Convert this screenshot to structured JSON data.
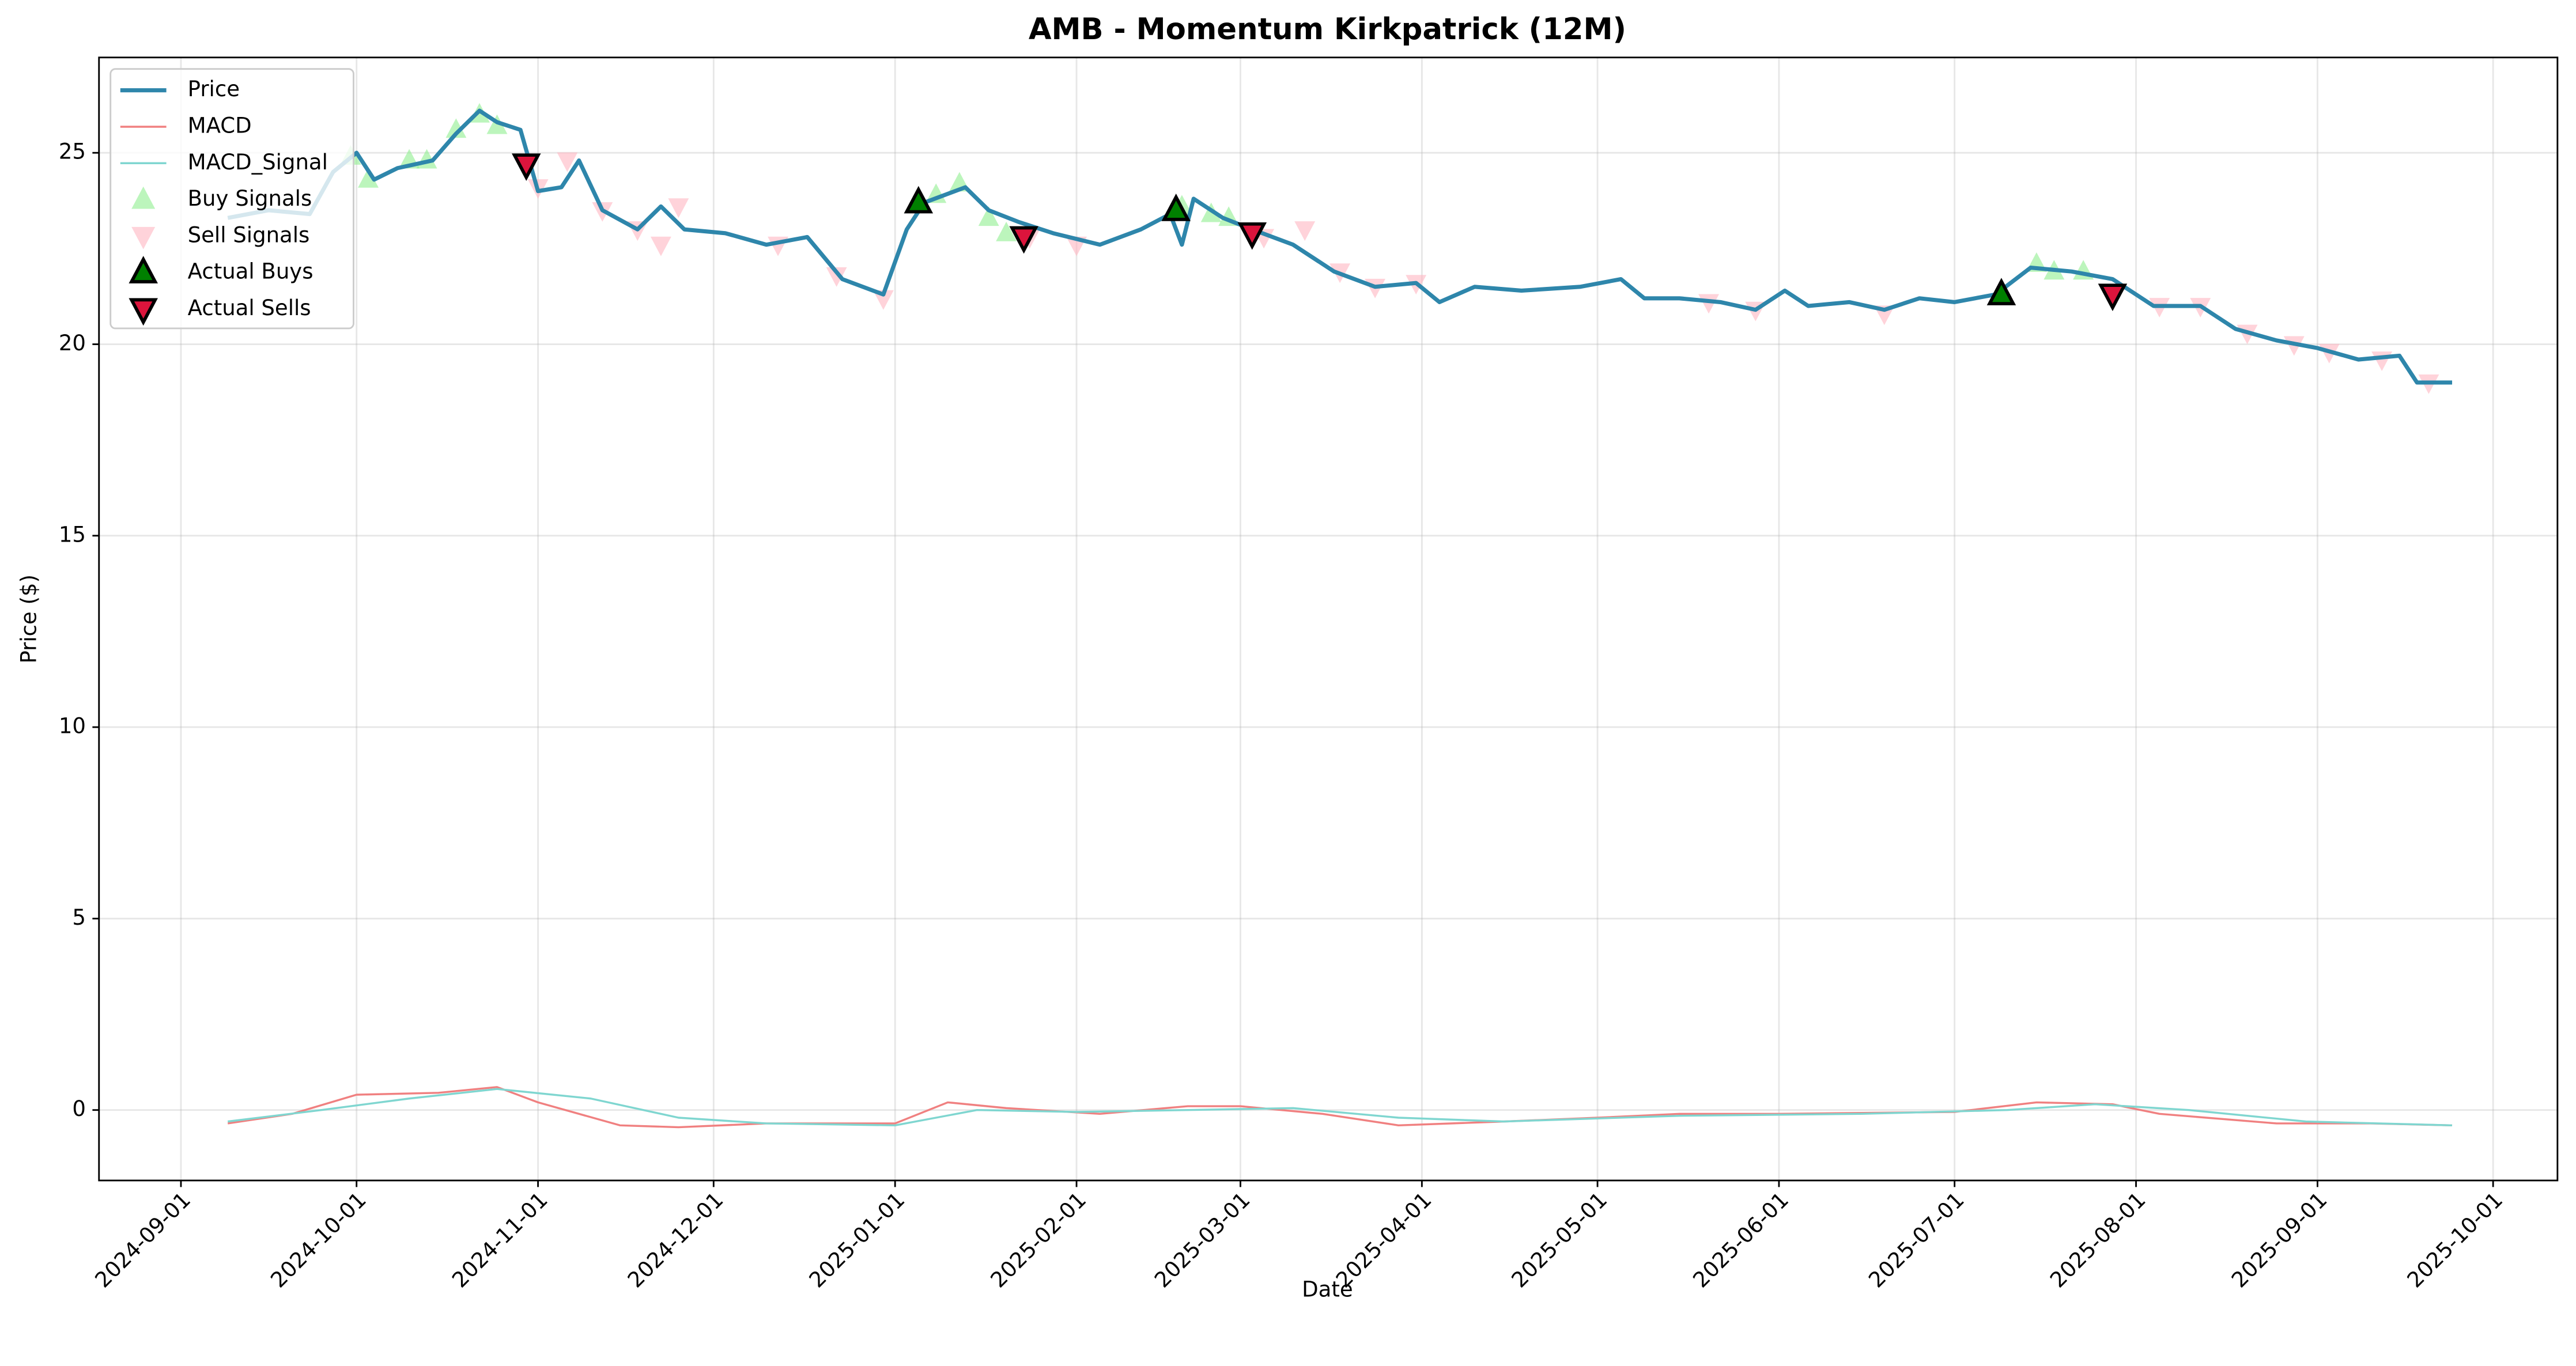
{
  "chart_data": {
    "type": "line",
    "title": "AMB - Momentum Kirkpatrick (12M)",
    "x_label": "Date",
    "y_label": "Price ($)",
    "xlim": [
      "2024-08-18",
      "2025-10-12"
    ],
    "ylim": [
      -1.84,
      27.49
    ],
    "xticks": [
      "2024-09-01",
      "2024-10-01",
      "2024-11-01",
      "2024-12-01",
      "2025-01-01",
      "2025-02-01",
      "2025-03-01",
      "2025-04-01",
      "2025-05-01",
      "2025-06-01",
      "2025-07-01",
      "2025-08-01",
      "2025-09-01",
      "2025-10-01"
    ],
    "yticks": [
      0,
      5,
      10,
      15,
      20,
      25
    ],
    "grid": true,
    "legend": "upper left",
    "series": [
      {
        "name": "Price",
        "kind": "line",
        "color": "#2e86ab",
        "width": 2.5,
        "x": [
          "2024-09-09",
          "2024-09-16",
          "2024-09-23",
          "2024-09-27",
          "2024-10-01",
          "2024-10-04",
          "2024-10-08",
          "2024-10-14",
          "2024-10-18",
          "2024-10-22",
          "2024-10-25",
          "2024-10-29",
          "2024-11-01",
          "2024-11-05",
          "2024-11-08",
          "2024-11-12",
          "2024-11-18",
          "2024-11-22",
          "2024-11-26",
          "2024-12-03",
          "2024-12-10",
          "2024-12-17",
          "2024-12-23",
          "2024-12-30",
          "2025-01-03",
          "2025-01-06",
          "2025-01-13",
          "2025-01-17",
          "2025-01-22",
          "2025-01-28",
          "2025-02-05",
          "2025-02-12",
          "2025-02-17",
          "2025-02-19",
          "2025-02-21",
          "2025-02-26",
          "2025-03-03",
          "2025-03-10",
          "2025-03-17",
          "2025-03-24",
          "2025-03-31",
          "2025-04-04",
          "2025-04-10",
          "2025-04-18",
          "2025-04-28",
          "2025-05-05",
          "2025-05-09",
          "2025-05-15",
          "2025-05-22",
          "2025-05-28",
          "2025-06-02",
          "2025-06-06",
          "2025-06-13",
          "2025-06-19",
          "2025-06-25",
          "2025-07-01",
          "2025-07-08",
          "2025-07-14",
          "2025-07-21",
          "2025-07-28",
          "2025-08-04",
          "2025-08-12",
          "2025-08-18",
          "2025-08-25",
          "2025-09-01",
          "2025-09-08",
          "2025-09-15",
          "2025-09-18",
          "2025-09-24"
        ],
        "values": [
          23.3,
          23.5,
          23.4,
          24.5,
          25.0,
          24.3,
          24.6,
          24.8,
          25.5,
          26.1,
          25.8,
          25.6,
          24.0,
          24.1,
          24.8,
          23.5,
          23.0,
          23.6,
          23.0,
          22.9,
          22.6,
          22.8,
          21.7,
          21.3,
          23.0,
          23.7,
          24.1,
          23.5,
          23.2,
          22.9,
          22.6,
          23.0,
          23.4,
          22.6,
          23.8,
          23.3,
          23.0,
          22.6,
          21.9,
          21.5,
          21.6,
          21.1,
          21.5,
          21.4,
          21.5,
          21.7,
          21.2,
          21.2,
          21.1,
          20.9,
          21.4,
          21.0,
          21.1,
          20.9,
          21.2,
          21.1,
          21.3,
          22.0,
          21.9,
          21.7,
          21.0,
          21.0,
          20.4,
          20.1,
          19.9,
          19.6,
          19.7,
          19.0,
          19.0
        ]
      },
      {
        "name": "MACD",
        "kind": "line",
        "color": "#f08080",
        "width": 1.2,
        "x": [
          "2024-09-09",
          "2024-09-20",
          "2024-10-01",
          "2024-10-15",
          "2024-10-25",
          "2024-11-01",
          "2024-11-15",
          "2024-11-25",
          "2024-12-10",
          "2024-12-25",
          "2025-01-01",
          "2025-01-10",
          "2025-01-20",
          "2025-02-05",
          "2025-02-20",
          "2025-03-01",
          "2025-03-15",
          "2025-03-28",
          "2025-04-15",
          "2025-05-01",
          "2025-05-15",
          "2025-06-01",
          "2025-07-01",
          "2025-07-15",
          "2025-07-28",
          "2025-08-05",
          "2025-08-25",
          "2025-09-10",
          "2025-09-24"
        ],
        "values": [
          -0.35,
          -0.1,
          0.4,
          0.45,
          0.6,
          0.2,
          -0.4,
          -0.45,
          -0.35,
          -0.35,
          -0.35,
          0.2,
          0.05,
          -0.1,
          0.1,
          0.1,
          -0.1,
          -0.4,
          -0.3,
          -0.2,
          -0.1,
          -0.1,
          -0.05,
          0.2,
          0.15,
          -0.1,
          -0.35,
          -0.35,
          -0.4
        ]
      },
      {
        "name": "MACD_Signal",
        "kind": "line",
        "color": "#7fd6d0",
        "width": 1.2,
        "x": [
          "2024-09-09",
          "2024-09-25",
          "2024-10-10",
          "2024-10-25",
          "2024-11-10",
          "2024-11-25",
          "2024-12-10",
          "2025-01-01",
          "2025-01-15",
          "2025-02-01",
          "2025-02-20",
          "2025-03-10",
          "2025-03-28",
          "2025-04-15",
          "2025-05-15",
          "2025-06-15",
          "2025-07-10",
          "2025-07-25",
          "2025-08-10",
          "2025-08-30",
          "2025-09-24"
        ],
        "values": [
          -0.3,
          0.0,
          0.3,
          0.55,
          0.3,
          -0.2,
          -0.35,
          -0.4,
          0.0,
          -0.05,
          0.0,
          0.05,
          -0.2,
          -0.3,
          -0.15,
          -0.1,
          0.0,
          0.15,
          0.0,
          -0.3,
          -0.4
        ]
      },
      {
        "name": "Buy Signals",
        "kind": "scatter",
        "marker": "up",
        "color": "#90ee90",
        "edge": "none",
        "opacity": 0.6,
        "x": [
          "2024-09-30",
          "2024-10-03",
          "2024-10-10",
          "2024-10-13",
          "2024-10-18",
          "2024-10-22",
          "2024-10-25",
          "2025-01-08",
          "2025-01-12",
          "2025-01-17",
          "2025-01-20",
          "2025-02-19",
          "2025-02-24",
          "2025-02-27",
          "2025-07-15",
          "2025-07-18",
          "2025-07-23"
        ],
        "values": [
          24.9,
          24.3,
          24.8,
          24.8,
          25.6,
          26.0,
          25.7,
          23.9,
          24.2,
          23.3,
          22.9,
          23.6,
          23.4,
          23.3,
          22.1,
          21.9,
          21.9
        ]
      },
      {
        "name": "Sell Signals",
        "kind": "scatter",
        "marker": "down",
        "color": "#ffb6c1",
        "edge": "none",
        "opacity": 0.6,
        "x": [
          "2024-11-01",
          "2024-11-06",
          "2024-11-12",
          "2024-11-18",
          "2024-11-22",
          "2024-11-25",
          "2024-12-12",
          "2024-12-22",
          "2024-12-30",
          "2025-01-24",
          "2025-02-01",
          "2025-03-05",
          "2025-03-12",
          "2025-03-18",
          "2025-03-24",
          "2025-03-31",
          "2025-05-20",
          "2025-05-28",
          "2025-06-19",
          "2025-08-05",
          "2025-08-12",
          "2025-08-20",
          "2025-08-28",
          "2025-09-03",
          "2025-09-12",
          "2025-09-20"
        ],
        "values": [
          24.1,
          24.8,
          23.5,
          23.0,
          22.6,
          23.6,
          22.6,
          21.8,
          21.2,
          22.8,
          22.6,
          22.8,
          23.0,
          21.9,
          21.5,
          21.6,
          21.1,
          20.9,
          20.8,
          21.0,
          21.0,
          20.3,
          20.0,
          19.8,
          19.6,
          19.0
        ]
      },
      {
        "name": "Actual Buys",
        "kind": "scatter",
        "marker": "up",
        "color": "#008000",
        "edge": "#000000",
        "opacity": 1,
        "x": [
          "2025-01-05",
          "2025-02-18",
          "2025-07-09"
        ],
        "values": [
          23.7,
          23.5,
          21.3
        ]
      },
      {
        "name": "Actual Sells",
        "kind": "scatter",
        "marker": "down",
        "color": "#dc143c",
        "edge": "#000000",
        "opacity": 1,
        "x": [
          "2024-10-30",
          "2025-01-23",
          "2025-03-03",
          "2025-07-28"
        ],
        "values": [
          24.7,
          22.8,
          22.9,
          21.3
        ]
      }
    ]
  }
}
